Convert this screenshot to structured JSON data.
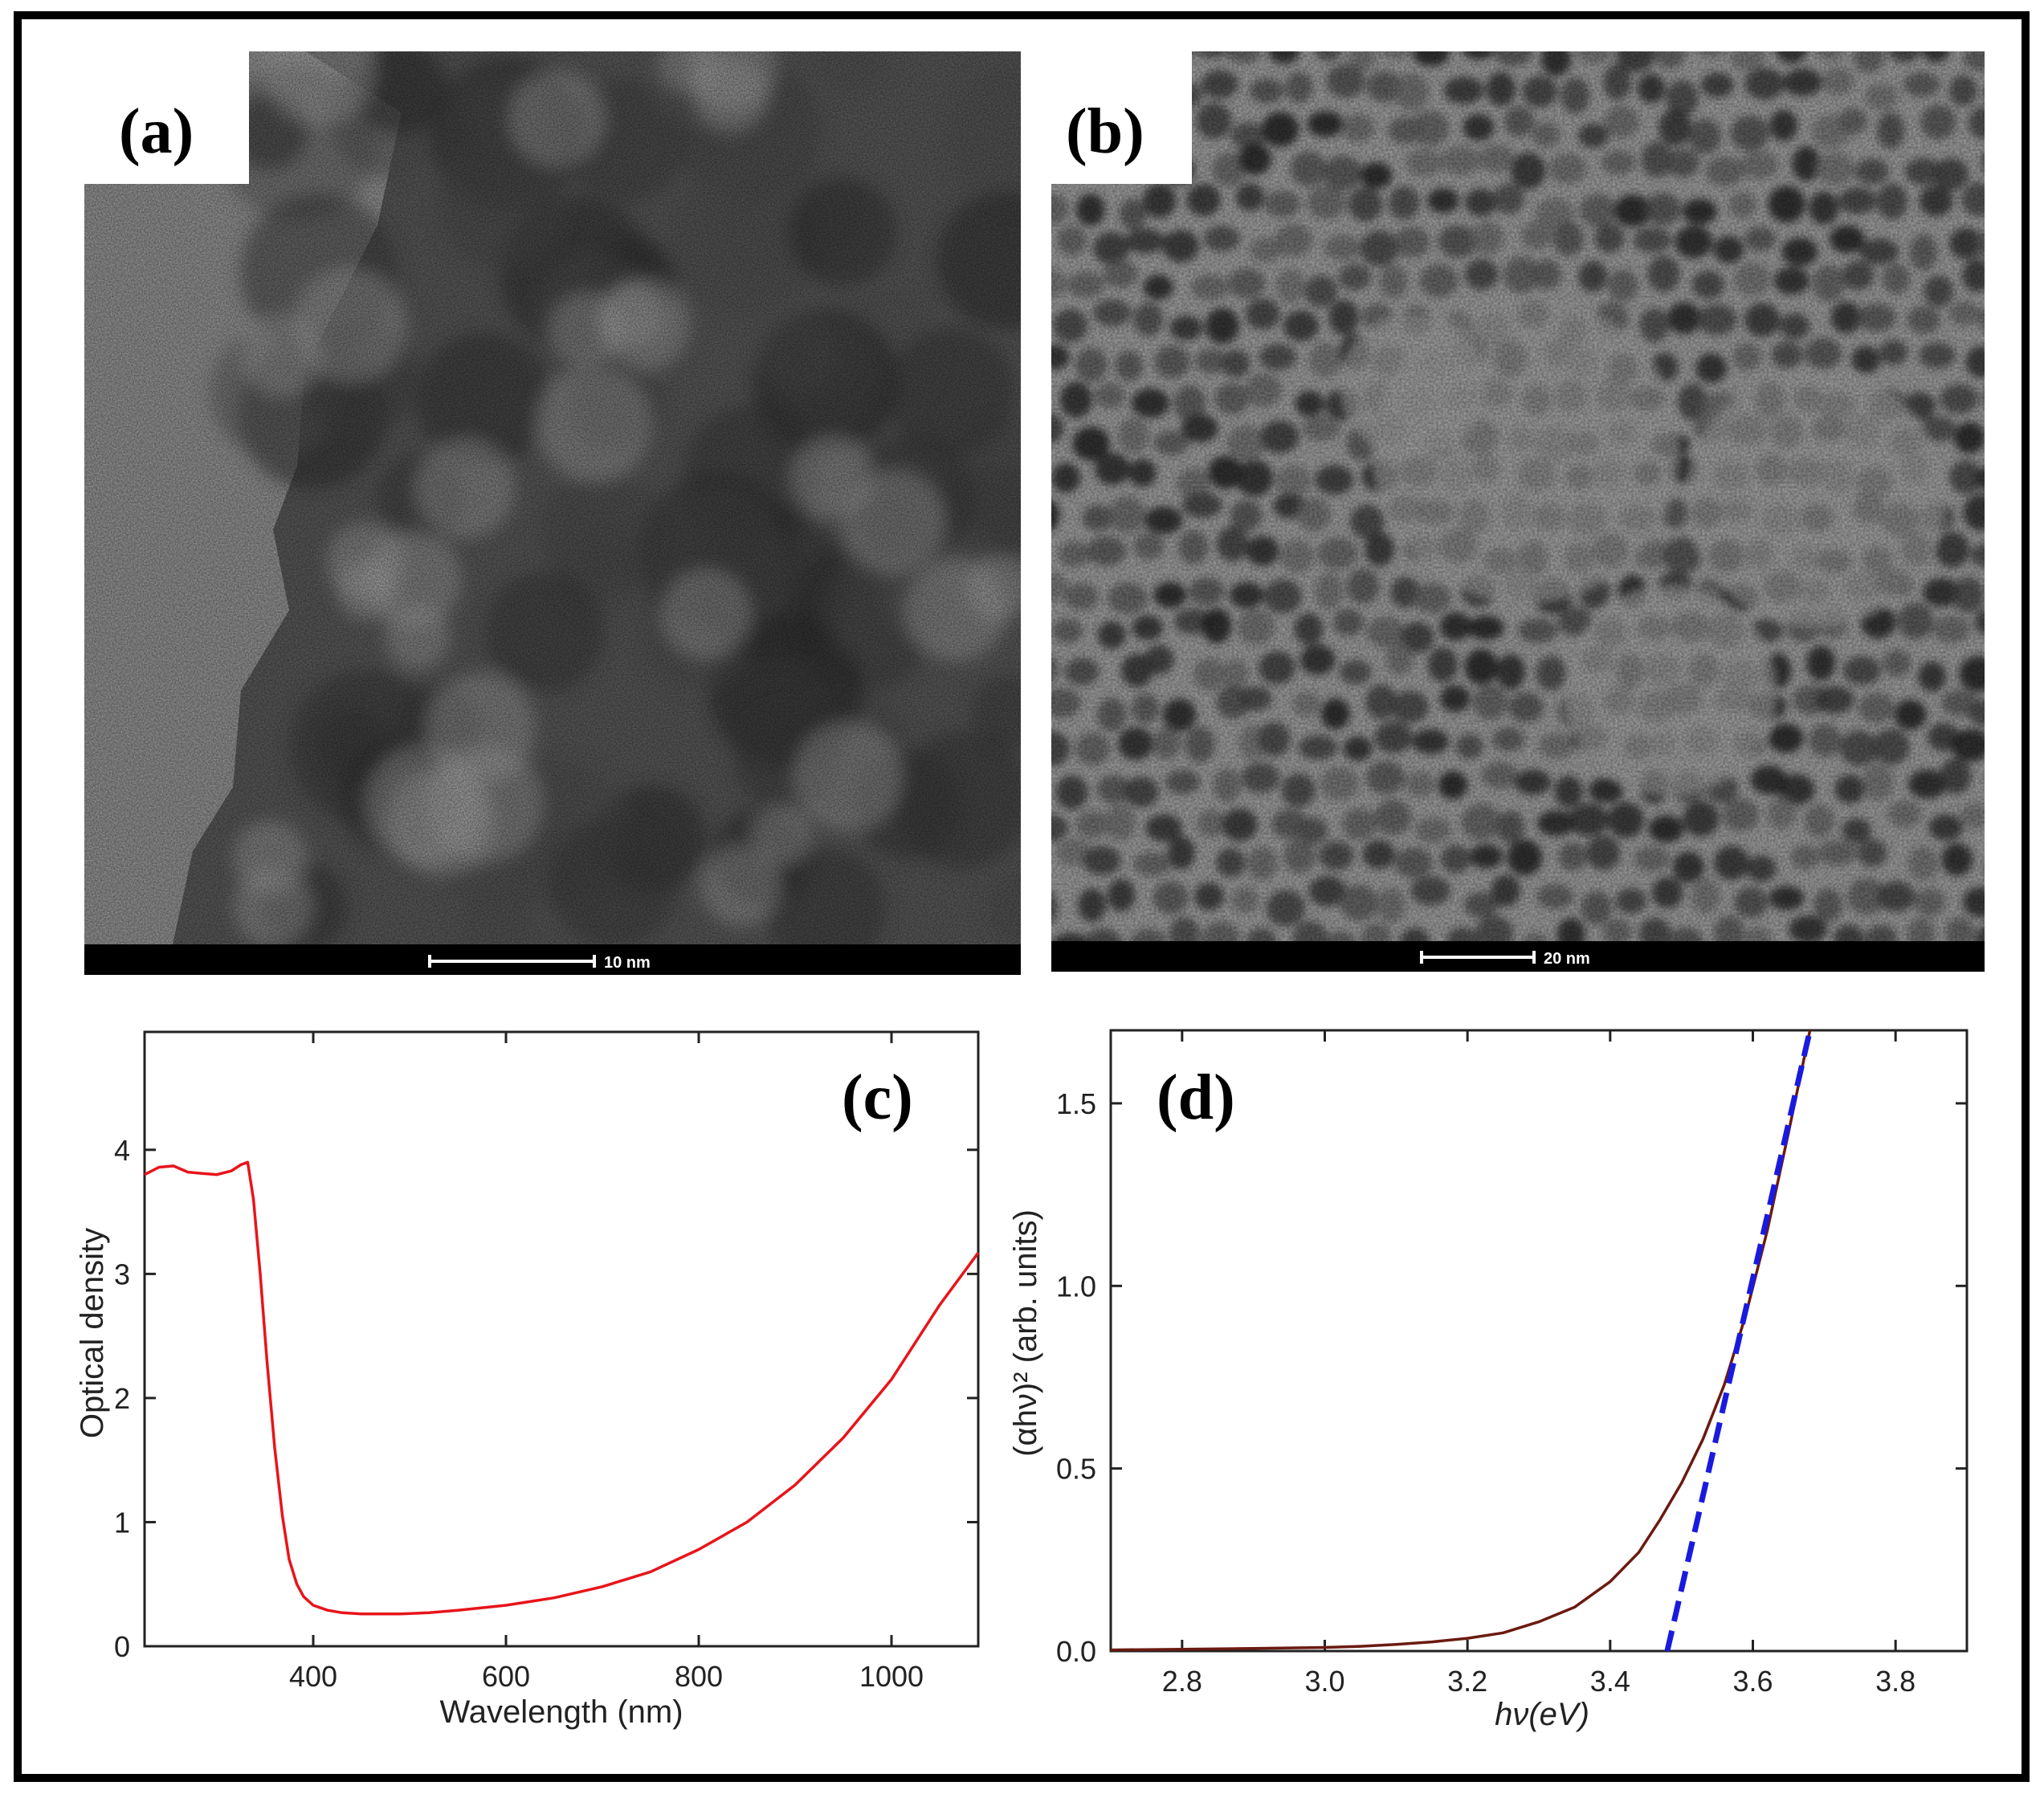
{
  "panels": {
    "a": {
      "label": "(a)",
      "scale_bar": "10 nm"
    },
    "b": {
      "label": "(b)",
      "scale_bar": "20 nm"
    },
    "c": {
      "label": "(c)"
    },
    "d": {
      "label": "(d)"
    }
  },
  "colors": {
    "spectrum_line": "#e8141a",
    "fit_line": "#1a1adf",
    "data_line_d": "#6b1a10"
  },
  "chart_data": [
    {
      "panel": "c",
      "type": "line",
      "title": "",
      "xlabel": "Wavelength (nm)",
      "ylabel": "Optical density",
      "xlim": [
        225,
        1090
      ],
      "ylim": [
        0,
        4.95
      ],
      "xticks": [
        400,
        600,
        800,
        1000
      ],
      "yticks": [
        0,
        1,
        2,
        3,
        4
      ],
      "xtick_labels": [
        "400",
        "600",
        "800",
        "1000"
      ],
      "ytick_labels": [
        "0",
        "1",
        "2",
        "3",
        "4"
      ],
      "grid": false,
      "series": [
        {
          "x": [
            225,
            240,
            255,
            270,
            285,
            300,
            315,
            325,
            332,
            338,
            345,
            352,
            360,
            368,
            375,
            383,
            390,
            400,
            415,
            430,
            450,
            470,
            490,
            520,
            550,
            600,
            650,
            700,
            750,
            800,
            850,
            900,
            950,
            1000,
            1050,
            1090
          ],
          "y": [
            3.8,
            3.86,
            3.87,
            3.82,
            3.81,
            3.8,
            3.83,
            3.88,
            3.9,
            3.6,
            3.0,
            2.3,
            1.6,
            1.05,
            0.7,
            0.5,
            0.4,
            0.33,
            0.29,
            0.27,
            0.26,
            0.26,
            0.26,
            0.27,
            0.29,
            0.33,
            0.39,
            0.48,
            0.6,
            0.78,
            1.0,
            1.3,
            1.68,
            2.15,
            2.75,
            3.17
          ]
        }
      ]
    },
    {
      "panel": "d",
      "type": "line",
      "title": "",
      "xlabel": "hν(eV)",
      "ylabel": "(αhν)² (arb. units)",
      "xlim": [
        2.7,
        3.9
      ],
      "ylim": [
        0.0,
        1.7
      ],
      "xticks": [
        2.8,
        3.0,
        3.2,
        3.4,
        3.6,
        3.8
      ],
      "yticks": [
        0.0,
        0.5,
        1.0,
        1.5
      ],
      "xtick_labels": [
        "2.8",
        "3.0",
        "3.2",
        "3.4",
        "3.6",
        "3.8"
      ],
      "ytick_labels": [
        "0.0",
        "0.5",
        "1.0",
        "1.5"
      ],
      "grid": false,
      "series": [
        {
          "x": [
            2.7,
            2.8,
            2.9,
            3.0,
            3.05,
            3.1,
            3.15,
            3.2,
            3.25,
            3.3,
            3.35,
            3.4,
            3.44,
            3.47,
            3.5,
            3.53,
            3.56,
            3.59,
            3.62,
            3.65,
            3.68
          ],
          "y": [
            0.003,
            0.005,
            0.007,
            0.01,
            0.013,
            0.018,
            0.025,
            0.035,
            0.05,
            0.08,
            0.12,
            0.19,
            0.27,
            0.36,
            0.46,
            0.58,
            0.73,
            0.92,
            1.15,
            1.42,
            1.7
          ]
        },
        {
          "style": "dashed",
          "x": [
            3.48,
            3.68
          ],
          "y": [
            0.0,
            1.7
          ]
        }
      ]
    }
  ]
}
